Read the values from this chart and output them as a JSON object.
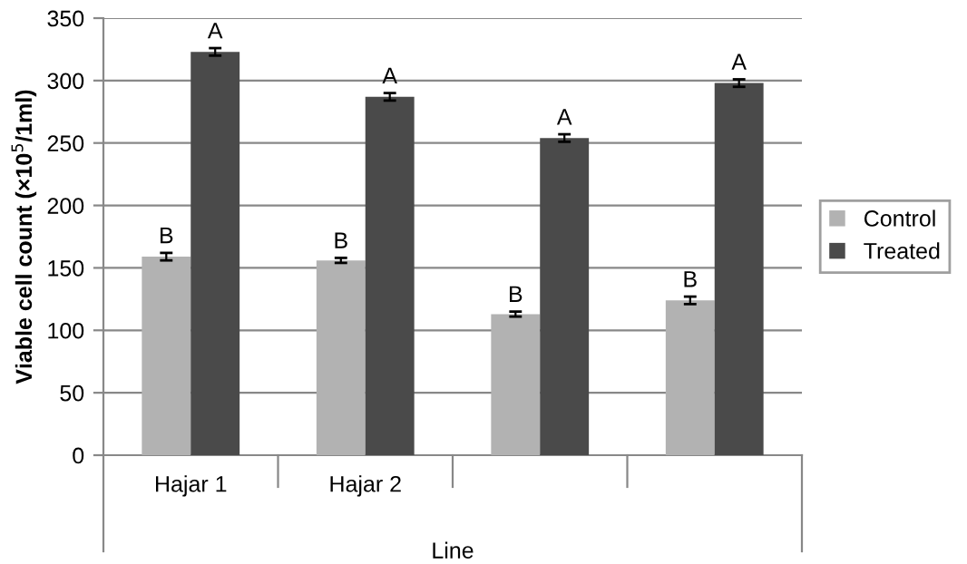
{
  "chart_data": {
    "type": "bar",
    "ylabel": "Viable cell count (×10$^{5}$/1ml)",
    "xlabel": "Line",
    "categories": [
      "Hajar 1",
      "Hajar 2",
      null,
      null
    ],
    "series": [
      {
        "name": "Control",
        "color": "#b2b2b2",
        "values": [
          159,
          156,
          113,
          124
        ],
        "errors": [
          3,
          2,
          2,
          3
        ],
        "value_labels": [
          "B",
          "B",
          "B",
          "B"
        ]
      },
      {
        "name": "Treated",
        "color": "#4a4a4a",
        "values": [
          323,
          287,
          254,
          298
        ],
        "errors": [
          3,
          3,
          3,
          3
        ],
        "value_labels": [
          "A",
          "A",
          "A",
          "A"
        ]
      }
    ],
    "ylim": [
      0,
      350
    ],
    "yticks": [
      0,
      50,
      100,
      150,
      200,
      250,
      300,
      350
    ],
    "grid": "y",
    "legend": "right"
  }
}
